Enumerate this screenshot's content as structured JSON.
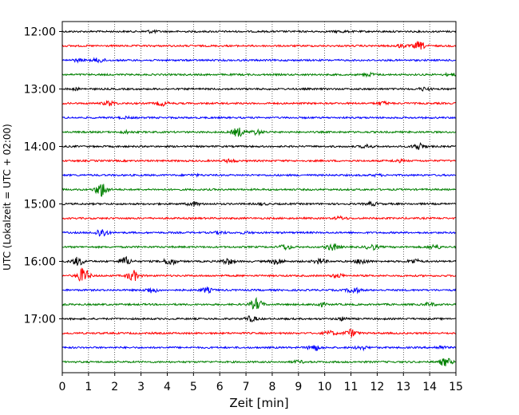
{
  "chart_data": {
    "type": "line",
    "title": "",
    "xlabel": "Zeit  [min]",
    "ylabel": "UTC (Lokalzeit = UTC + 02:00)",
    "xlim": [
      0,
      15
    ],
    "xticks": [
      0,
      1,
      2,
      3,
      4,
      5,
      6,
      7,
      8,
      9,
      10,
      11,
      12,
      13,
      14,
      15
    ],
    "yticks": [
      {
        "hour": 12.0,
        "label": "12:00"
      },
      {
        "hour": 13.0,
        "label": "13:00"
      },
      {
        "hour": 14.0,
        "label": "14:00"
      },
      {
        "hour": 15.0,
        "label": "15:00"
      },
      {
        "hour": 16.0,
        "label": "16:00"
      },
      {
        "hour": 17.0,
        "label": "17:00"
      }
    ],
    "ylim": [
      12.0,
      17.75
    ],
    "grid": "vertical dotted at each minute",
    "trace_colors": [
      "#000000",
      "#ff0000",
      "#0000ff",
      "#008000"
    ],
    "traces": [
      {
        "start": "12:00",
        "color": "#000000",
        "bursts": [
          [
            3.4,
            0.15
          ],
          [
            10.6,
            0.1
          ]
        ]
      },
      {
        "start": "12:15",
        "color": "#ff0000",
        "bursts": [
          [
            13.6,
            0.5
          ],
          [
            12.9,
            0.2
          ]
        ]
      },
      {
        "start": "12:30",
        "color": "#0000ff",
        "bursts": [
          [
            1.4,
            0.3
          ],
          [
            0.6,
            0.15
          ]
        ]
      },
      {
        "start": "12:45",
        "color": "#008000",
        "bursts": [
          [
            11.7,
            0.2
          ],
          [
            14.8,
            0.15
          ]
        ]
      },
      {
        "start": "13:00",
        "color": "#000000",
        "bursts": [
          [
            13.8,
            0.2
          ],
          [
            0.5,
            0.1
          ]
        ]
      },
      {
        "start": "13:15",
        "color": "#ff0000",
        "bursts": [
          [
            1.8,
            0.3
          ],
          [
            3.8,
            0.3
          ],
          [
            12.2,
            0.2
          ]
        ]
      },
      {
        "start": "13:30",
        "color": "#0000ff",
        "bursts": [
          [
            2.4,
            0.1
          ]
        ]
      },
      {
        "start": "13:45",
        "color": "#008000",
        "bursts": [
          [
            6.7,
            0.6
          ],
          [
            7.4,
            0.3
          ],
          [
            2.4,
            0.15
          ]
        ]
      },
      {
        "start": "14:00",
        "color": "#000000",
        "bursts": [
          [
            13.6,
            0.45
          ],
          [
            11.6,
            0.2
          ]
        ]
      },
      {
        "start": "14:15",
        "color": "#ff0000",
        "bursts": [
          [
            6.4,
            0.2
          ],
          [
            12.8,
            0.15
          ]
        ]
      },
      {
        "start": "14:30",
        "color": "#0000ff",
        "bursts": [
          [
            5.0,
            0.1
          ],
          [
            12.0,
            0.1
          ]
        ]
      },
      {
        "start": "14:45",
        "color": "#008000",
        "bursts": [
          [
            1.5,
            1.0
          ]
        ]
      },
      {
        "start": "15:00",
        "color": "#000000",
        "bursts": [
          [
            5.0,
            0.25
          ],
          [
            11.8,
            0.2
          ],
          [
            7.6,
            0.1
          ]
        ]
      },
      {
        "start": "15:15",
        "color": "#ff0000",
        "bursts": [
          [
            10.6,
            0.2
          ]
        ]
      },
      {
        "start": "15:30",
        "color": "#0000ff",
        "bursts": [
          [
            1.5,
            0.6
          ],
          [
            6.0,
            0.15
          ],
          [
            7.0,
            0.1
          ]
        ]
      },
      {
        "start": "15:45",
        "color": "#008000",
        "bursts": [
          [
            8.5,
            0.35
          ],
          [
            10.3,
            0.45
          ],
          [
            11.8,
            0.35
          ],
          [
            14.2,
            0.3
          ]
        ]
      },
      {
        "start": "16:00",
        "color": "#000000",
        "bursts": [
          [
            0.6,
            0.55
          ],
          [
            2.4,
            0.55
          ],
          [
            4.1,
            0.5
          ],
          [
            6.3,
            0.4
          ],
          [
            8.2,
            0.4
          ],
          [
            9.8,
            0.35
          ],
          [
            11.4,
            0.35
          ],
          [
            13.4,
            0.3
          ]
        ]
      },
      {
        "start": "16:15",
        "color": "#ff0000",
        "bursts": [
          [
            0.8,
            1.0
          ],
          [
            2.7,
            0.7
          ],
          [
            10.5,
            0.25
          ]
        ]
      },
      {
        "start": "16:30",
        "color": "#0000ff",
        "bursts": [
          [
            3.4,
            0.35
          ],
          [
            5.5,
            0.3
          ],
          [
            11.1,
            0.4
          ]
        ]
      },
      {
        "start": "16:45",
        "color": "#008000",
        "bursts": [
          [
            7.4,
            0.75
          ],
          [
            9.8,
            0.25
          ],
          [
            14.0,
            0.2
          ]
        ]
      },
      {
        "start": "17:00",
        "color": "#000000",
        "bursts": [
          [
            7.2,
            0.35
          ],
          [
            10.7,
            0.2
          ]
        ]
      },
      {
        "start": "17:15",
        "color": "#ff0000",
        "bursts": [
          [
            11.0,
            0.5
          ],
          [
            10.2,
            0.3
          ]
        ]
      },
      {
        "start": "17:30",
        "color": "#0000ff",
        "bursts": [
          [
            9.6,
            0.4
          ],
          [
            11.4,
            0.25
          ],
          [
            14.4,
            0.2
          ]
        ]
      },
      {
        "start": "17:45",
        "color": "#008000",
        "bursts": [
          [
            14.6,
            0.55
          ],
          [
            9.0,
            0.15
          ]
        ]
      }
    ]
  }
}
